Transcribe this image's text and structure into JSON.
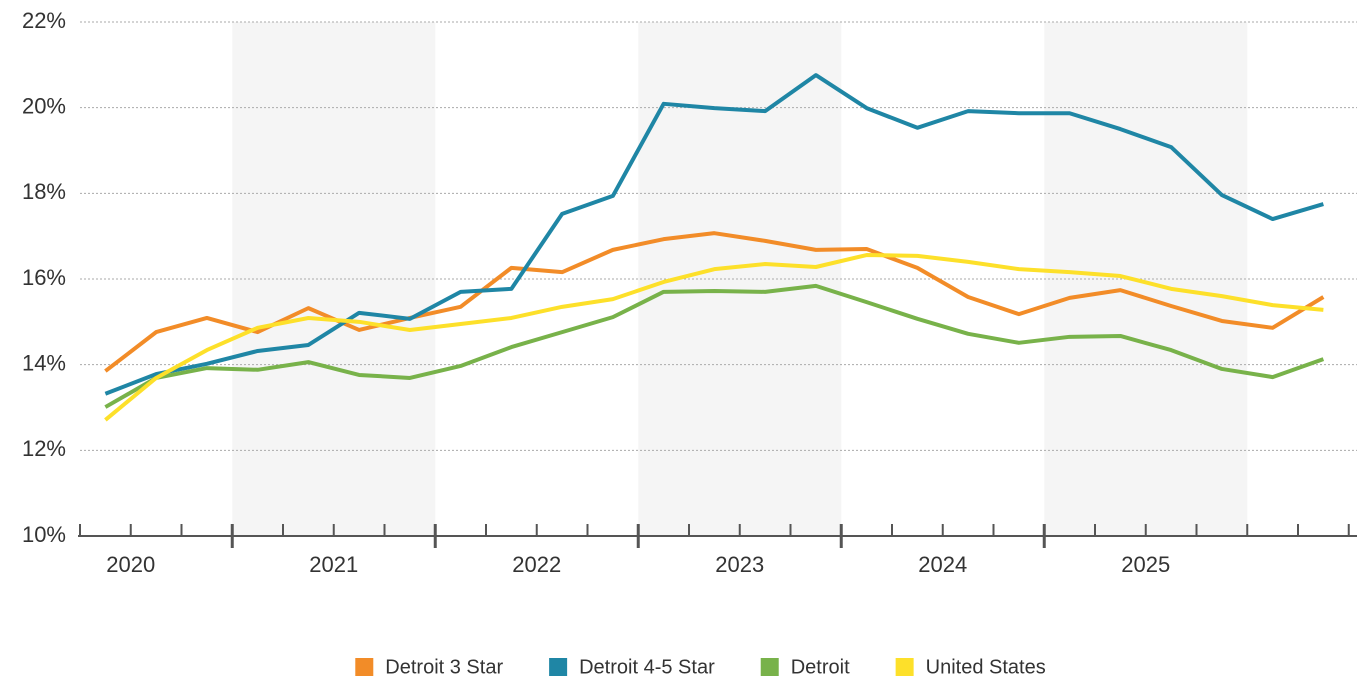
{
  "chart_data": {
    "type": "line",
    "categories": [
      "2020",
      null,
      null,
      null,
      "2021",
      null,
      null,
      null,
      "2022",
      null,
      null,
      null,
      "2023",
      null,
      null,
      null,
      "2024",
      null,
      null,
      null,
      "2025",
      null,
      null,
      null,
      null
    ],
    "series": [
      {
        "name": "Detroit 3 Star",
        "color": "#f28c28",
        "values": [
          13.85,
          14.76,
          15.09,
          14.76,
          15.32,
          14.81,
          15.09,
          15.35,
          16.26,
          16.16,
          16.68,
          16.93,
          17.07,
          16.89,
          16.68,
          16.7,
          16.26,
          15.58,
          15.18,
          15.56,
          15.74,
          15.37,
          15.02,
          14.86,
          15.58
        ]
      },
      {
        "name": "Detroit 4-5 Star",
        "color": "#1f86a5",
        "values": [
          13.32,
          13.78,
          14.02,
          14.32,
          14.46,
          15.21,
          15.07,
          15.7,
          15.77,
          17.52,
          17.94,
          20.09,
          19.99,
          19.92,
          20.76,
          19.99,
          19.53,
          19.92,
          19.87,
          19.87,
          19.5,
          19.08,
          17.96,
          17.4,
          17.75
        ]
      },
      {
        "name": "Detroit",
        "color": "#78b24a",
        "values": [
          13.01,
          13.69,
          13.92,
          13.88,
          14.06,
          13.76,
          13.69,
          13.97,
          14.41,
          14.76,
          15.11,
          15.7,
          15.72,
          15.7,
          15.84,
          15.46,
          15.07,
          14.72,
          14.51,
          14.65,
          14.67,
          14.34,
          13.9,
          13.71,
          14.13
        ]
      },
      {
        "name": "United States",
        "color": "#fde02a",
        "values": [
          12.71,
          13.69,
          14.34,
          14.86,
          15.09,
          15.0,
          14.81,
          14.95,
          15.09,
          15.35,
          15.53,
          15.93,
          16.23,
          16.35,
          16.28,
          16.56,
          16.54,
          16.4,
          16.23,
          16.16,
          16.07,
          15.77,
          15.6,
          15.39,
          15.28
        ]
      }
    ],
    "ylim": [
      10,
      22
    ],
    "yticks": [
      {
        "value": 10,
        "label": "10%"
      },
      {
        "value": 12,
        "label": "12%"
      },
      {
        "value": 14,
        "label": "14%"
      },
      {
        "value": 16,
        "label": "16%"
      },
      {
        "value": 18,
        "label": "18%"
      },
      {
        "value": 20,
        "label": "20%"
      },
      {
        "value": 22,
        "label": "22%"
      }
    ],
    "grid": true,
    "legend": "bottom"
  }
}
